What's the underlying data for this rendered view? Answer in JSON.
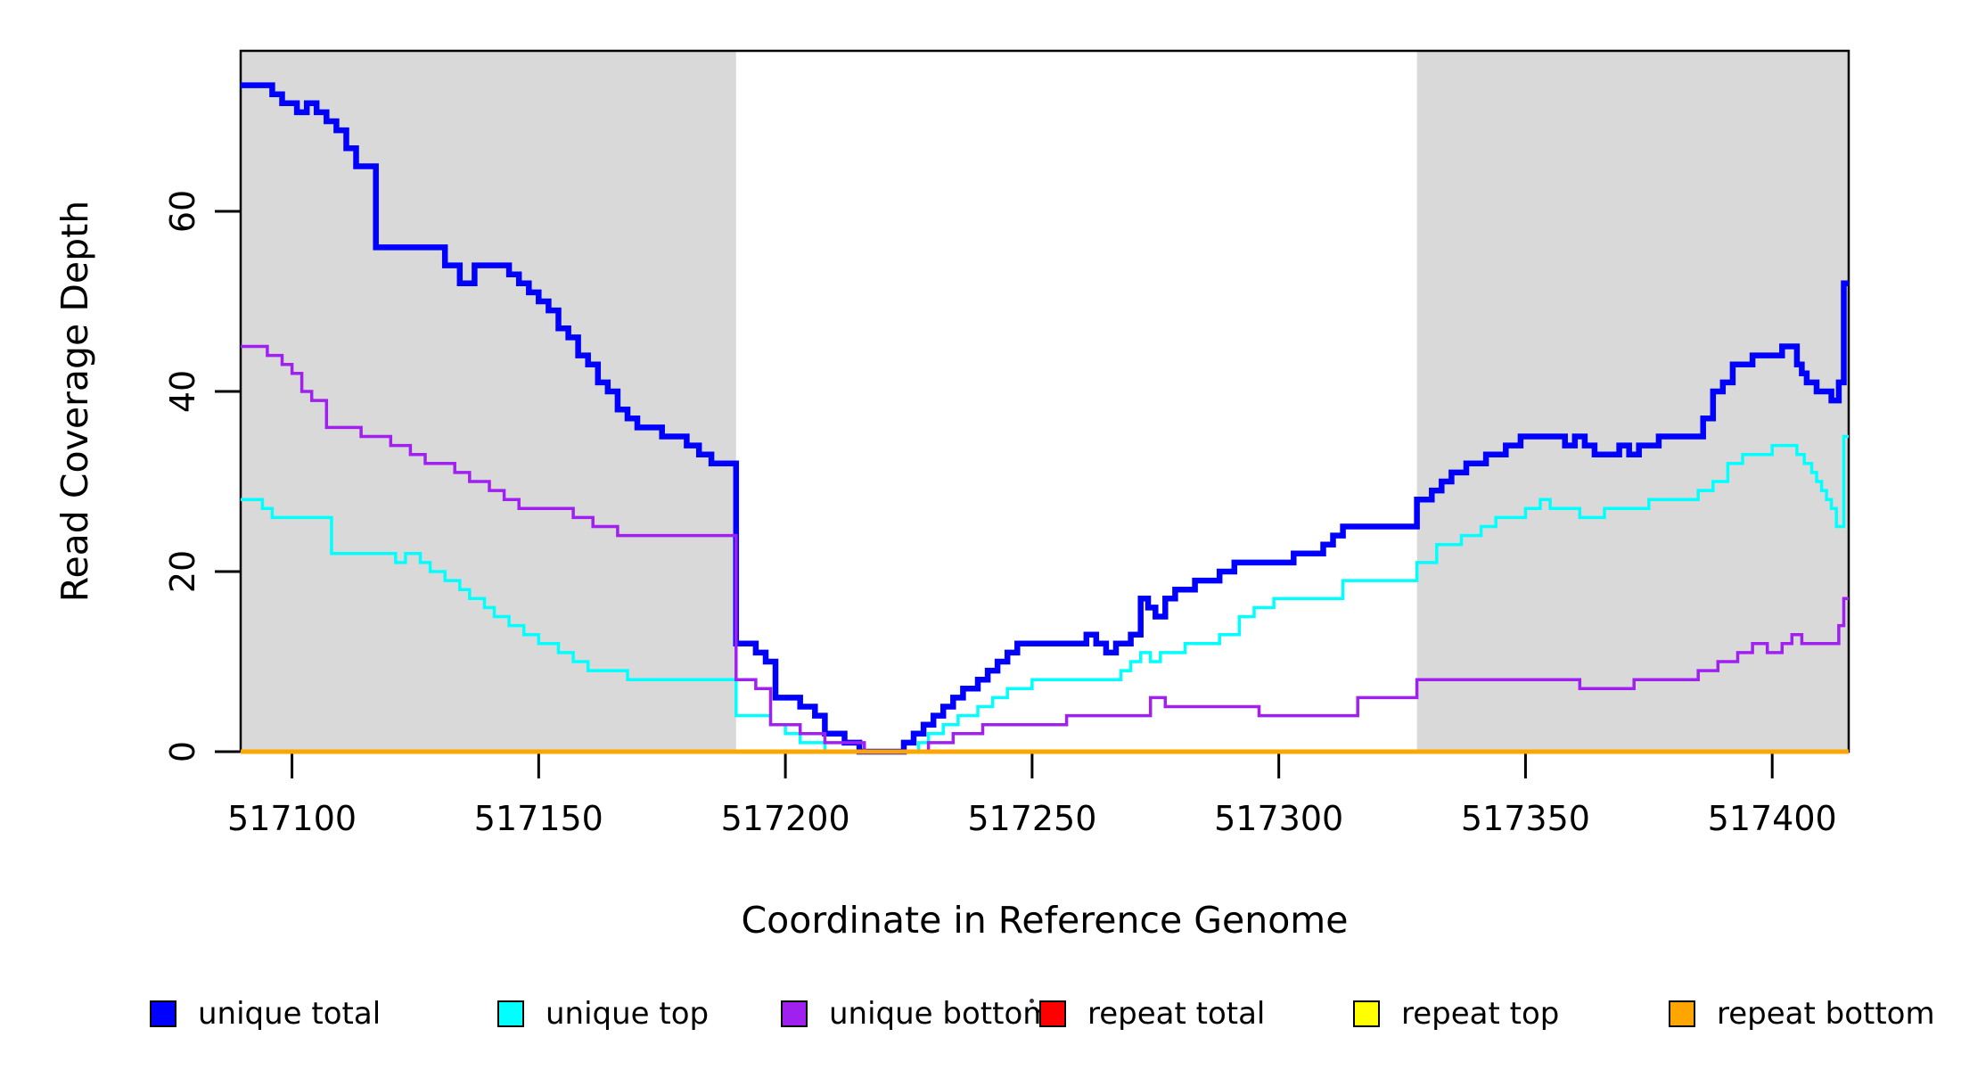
{
  "chart_data": {
    "type": "line",
    "subtype": "step-after-coverage-plot",
    "title": "",
    "xlabel": "Coordinate in Reference Genome",
    "ylabel": "Read Coverage Depth",
    "grid": false,
    "plot_background": "#ffffff",
    "box_color": "#000000",
    "x_range": [
      517089.6,
      517415.5
    ],
    "y_range": [
      0,
      77.8
    ],
    "x_ticks": [
      517100,
      517150,
      517200,
      517250,
      517300,
      517350,
      517400
    ],
    "y_ticks": [
      0,
      20,
      40,
      60
    ],
    "shaded_regions": [
      {
        "name": "left-gray-band",
        "x0": 517089.6,
        "x1": 517190,
        "color": "#D9D9D9"
      },
      {
        "name": "right-gray-band",
        "x0": 517328,
        "x1": 517415.5,
        "color": "#D9D9D9"
      }
    ],
    "series": [
      {
        "name": "unique total",
        "color": "#0000FF",
        "width": 6.5,
        "points": [
          [
            517089.6,
            74
          ],
          [
            517096,
            73
          ],
          [
            517098,
            72
          ],
          [
            517101,
            71
          ],
          [
            517103,
            72
          ],
          [
            517105,
            71
          ],
          [
            517107,
            70
          ],
          [
            517109,
            69
          ],
          [
            517111,
            67
          ],
          [
            517113,
            65
          ],
          [
            517117,
            56
          ],
          [
            517131,
            54
          ],
          [
            517134,
            52
          ],
          [
            517137,
            54
          ],
          [
            517144,
            53
          ],
          [
            517146,
            52
          ],
          [
            517148,
            51
          ],
          [
            517150,
            50
          ],
          [
            517152,
            49
          ],
          [
            517154,
            47
          ],
          [
            517156,
            46
          ],
          [
            517158,
            44
          ],
          [
            517160,
            43
          ],
          [
            517162,
            41
          ],
          [
            517164,
            40
          ],
          [
            517166,
            38
          ],
          [
            517168,
            37
          ],
          [
            517170,
            36
          ],
          [
            517175,
            35
          ],
          [
            517180,
            34
          ],
          [
            517182.5,
            33
          ],
          [
            517185,
            32
          ],
          [
            517190,
            12
          ],
          [
            517194,
            11
          ],
          [
            517196,
            10
          ],
          [
            517198,
            6
          ],
          [
            517203,
            5
          ],
          [
            517206,
            4
          ],
          [
            517208,
            2
          ],
          [
            517212,
            1
          ],
          [
            517215,
            0
          ],
          [
            517224,
            1
          ],
          [
            517226,
            2
          ],
          [
            517228,
            3
          ],
          [
            517230,
            4
          ],
          [
            517232,
            5
          ],
          [
            517234,
            6
          ],
          [
            517236,
            7
          ],
          [
            517239,
            8
          ],
          [
            517241,
            9
          ],
          [
            517243,
            10
          ],
          [
            517245,
            11
          ],
          [
            517247,
            12
          ],
          [
            517261,
            13
          ],
          [
            517263,
            12
          ],
          [
            517265,
            11
          ],
          [
            517267,
            12
          ],
          [
            517270,
            13
          ],
          [
            517272,
            17
          ],
          [
            517273.5,
            16
          ],
          [
            517275,
            15
          ],
          [
            517277,
            17
          ],
          [
            517279,
            18
          ],
          [
            517283,
            19
          ],
          [
            517288,
            20
          ],
          [
            517291,
            21
          ],
          [
            517303,
            22
          ],
          [
            517309,
            23
          ],
          [
            517311,
            24
          ],
          [
            517313,
            25
          ],
          [
            517328,
            28
          ],
          [
            517331,
            29
          ],
          [
            517333,
            30
          ],
          [
            517335,
            31
          ],
          [
            517338,
            32
          ],
          [
            517342,
            33
          ],
          [
            517346,
            34
          ],
          [
            517349,
            35
          ],
          [
            517358,
            34
          ],
          [
            517360,
            35
          ],
          [
            517362,
            34
          ],
          [
            517364,
            33
          ],
          [
            517369,
            34
          ],
          [
            517371,
            33
          ],
          [
            517373,
            34
          ],
          [
            517377,
            35
          ],
          [
            517386,
            37
          ],
          [
            517388,
            40
          ],
          [
            517390,
            41
          ],
          [
            517392,
            43
          ],
          [
            517396,
            44
          ],
          [
            517402,
            45
          ],
          [
            517405,
            43
          ],
          [
            517406,
            42
          ],
          [
            517407,
            41
          ],
          [
            517409,
            40
          ],
          [
            517412,
            39
          ],
          [
            517413.5,
            41
          ],
          [
            517414.5,
            52
          ]
        ]
      },
      {
        "name": "unique top",
        "color": "#00FFFF",
        "width": 3.5,
        "points": [
          [
            517089.6,
            28
          ],
          [
            517094,
            27
          ],
          [
            517096,
            26
          ],
          [
            517108,
            22
          ],
          [
            517121,
            21
          ],
          [
            517123,
            22
          ],
          [
            517126,
            21
          ],
          [
            517128,
            20
          ],
          [
            517131,
            19
          ],
          [
            517134,
            18
          ],
          [
            517136,
            17
          ],
          [
            517139,
            16
          ],
          [
            517141,
            15
          ],
          [
            517144,
            14
          ],
          [
            517147,
            13
          ],
          [
            517150,
            12
          ],
          [
            517154,
            11
          ],
          [
            517157,
            10
          ],
          [
            517160,
            9
          ],
          [
            517168,
            8
          ],
          [
            517190,
            4
          ],
          [
            517197,
            3
          ],
          [
            517200,
            2
          ],
          [
            517203,
            1
          ],
          [
            517208,
            0
          ],
          [
            517227,
            1
          ],
          [
            517229,
            2
          ],
          [
            517232,
            3
          ],
          [
            517235,
            4
          ],
          [
            517239,
            5
          ],
          [
            517242,
            6
          ],
          [
            517245,
            7
          ],
          [
            517250,
            8
          ],
          [
            517268,
            9
          ],
          [
            517270,
            10
          ],
          [
            517272,
            11
          ],
          [
            517274,
            10
          ],
          [
            517276,
            11
          ],
          [
            517281,
            12
          ],
          [
            517288,
            13
          ],
          [
            517292,
            15
          ],
          [
            517295,
            16
          ],
          [
            517299,
            17
          ],
          [
            517313,
            19
          ],
          [
            517328,
            21
          ],
          [
            517332,
            23
          ],
          [
            517337,
            24
          ],
          [
            517341,
            25
          ],
          [
            517344,
            26
          ],
          [
            517350,
            27
          ],
          [
            517353,
            28
          ],
          [
            517355,
            27
          ],
          [
            517361,
            26
          ],
          [
            517366,
            27
          ],
          [
            517375,
            28
          ],
          [
            517385,
            29
          ],
          [
            517388,
            30
          ],
          [
            517391,
            32
          ],
          [
            517394,
            33
          ],
          [
            517400,
            34
          ],
          [
            517405,
            33
          ],
          [
            517406.5,
            32
          ],
          [
            517408,
            31
          ],
          [
            517409,
            30
          ],
          [
            517410,
            29
          ],
          [
            517411,
            28
          ],
          [
            517412,
            27
          ],
          [
            517413,
            25
          ],
          [
            517414.5,
            35
          ]
        ]
      },
      {
        "name": "unique bottom",
        "color": "#A020F0",
        "width": 3.5,
        "points": [
          [
            517089.6,
            45
          ],
          [
            517095,
            44
          ],
          [
            517098,
            43
          ],
          [
            517100,
            42
          ],
          [
            517102,
            40
          ],
          [
            517104,
            39
          ],
          [
            517107,
            36
          ],
          [
            517114,
            35
          ],
          [
            517120,
            34
          ],
          [
            517124,
            33
          ],
          [
            517127,
            32
          ],
          [
            517133,
            31
          ],
          [
            517136,
            30
          ],
          [
            517140,
            29
          ],
          [
            517143,
            28
          ],
          [
            517146,
            27
          ],
          [
            517157,
            26
          ],
          [
            517161,
            25
          ],
          [
            517166,
            24
          ],
          [
            517190,
            8
          ],
          [
            517194,
            7
          ],
          [
            517197,
            3
          ],
          [
            517203,
            2
          ],
          [
            517208,
            1
          ],
          [
            517216,
            0
          ],
          [
            517229,
            1
          ],
          [
            517234,
            2
          ],
          [
            517240,
            3
          ],
          [
            517257,
            4
          ],
          [
            517274,
            6
          ],
          [
            517277,
            5
          ],
          [
            517296,
            4
          ],
          [
            517316,
            6
          ],
          [
            517328,
            8
          ],
          [
            517361,
            7
          ],
          [
            517372,
            8
          ],
          [
            517385,
            9
          ],
          [
            517389,
            10
          ],
          [
            517393,
            11
          ],
          [
            517396,
            12
          ],
          [
            517399,
            11
          ],
          [
            517402,
            12
          ],
          [
            517404,
            13
          ],
          [
            517406,
            12
          ],
          [
            517413.5,
            14
          ],
          [
            517414.5,
            17
          ]
        ]
      },
      {
        "name": "repeat total",
        "color": "#FF0000",
        "width": 3,
        "points": [
          [
            517089.6,
            0
          ]
        ]
      },
      {
        "name": "repeat top",
        "color": "#FFFF00",
        "width": 3,
        "points": [
          [
            517089.6,
            0
          ]
        ]
      },
      {
        "name": "repeat bottom",
        "color": "#FFA500",
        "width": 5,
        "points": [
          [
            517089.6,
            0
          ]
        ]
      }
    ],
    "legend": {
      "position": "bottom",
      "items": [
        {
          "label": "unique total",
          "color": "#0000FF"
        },
        {
          "label": "unique top",
          "color": "#00FFFF"
        },
        {
          "label": "unique bottom",
          "color": "#A020F0"
        },
        {
          "label": "repeat total",
          "color": "#FF0000"
        },
        {
          "label": "repeat top",
          "color": "#FFFF00"
        },
        {
          "label": "repeat bottom",
          "color": "#FFA500"
        }
      ]
    }
  }
}
